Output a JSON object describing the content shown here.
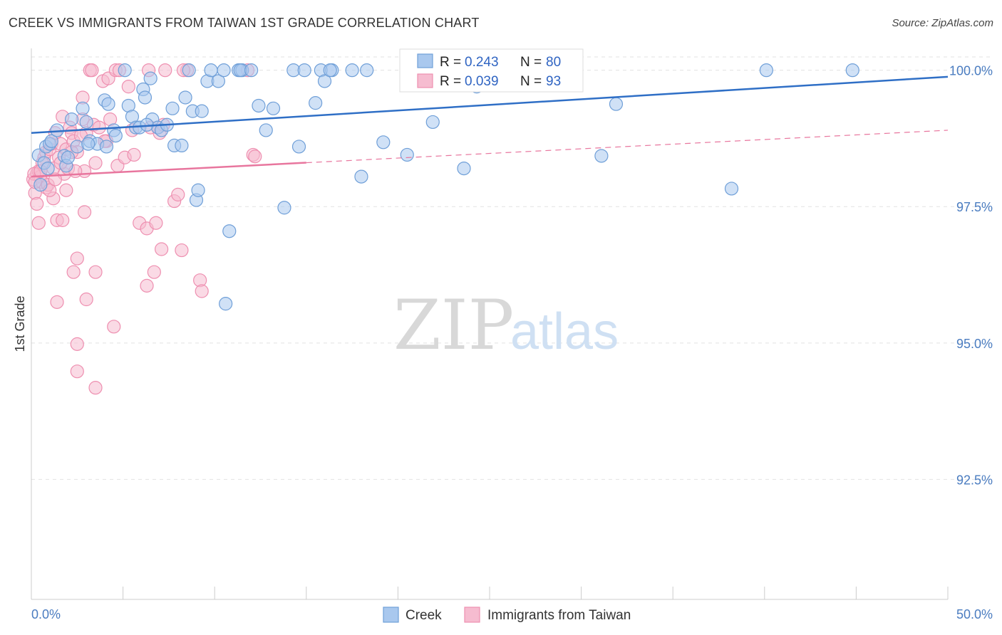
{
  "title": "CREEK VS IMMIGRANTS FROM TAIWAN 1ST GRADE CORRELATION CHART",
  "source": "Source: ZipAtlas.com",
  "watermark": {
    "zip": "ZIP",
    "atlas": "atlas"
  },
  "legend": {
    "r_label": "R =",
    "n_label": "N =",
    "rows": [
      {
        "series": "Creek",
        "r": "0.243",
        "n": "80"
      },
      {
        "series": "Immigrants from Taiwan",
        "r": "0.039",
        "n": "93"
      }
    ]
  },
  "colors": {
    "creek_fill": "#a9c8ee",
    "creek_stroke": "#6f9fd8",
    "creek_line": "#2f6fc6",
    "taiwan_fill": "#f6bcd0",
    "taiwan_stroke": "#ee8fb0",
    "taiwan_line": "#e8769e",
    "tick_label": "#4a7cc0"
  },
  "chart_data": {
    "type": "scatter",
    "title": "CREEK VS IMMIGRANTS FROM TAIWAN 1ST GRADE CORRELATION CHART",
    "xlabel": "",
    "ylabel": "1st Grade",
    "xlim": [
      0,
      50
    ],
    "ylim": [
      90.3,
      100.4
    ],
    "x_tick_labels": [
      "0.0%",
      "50.0%"
    ],
    "y_ticks": [
      92.5,
      95.0,
      97.5,
      100.0
    ],
    "y_tick_labels": [
      "92.5%",
      "95.0%",
      "97.5%",
      "100.0%"
    ],
    "legend_position": "bottom",
    "series": [
      {
        "name": "Creek",
        "trend": {
          "x": [
            0,
            50
          ],
          "y": [
            98.85,
            99.88
          ],
          "dashed_from": null
        },
        "points": [
          [
            0.4,
            98.44
          ],
          [
            0.5,
            97.9
          ],
          [
            0.7,
            98.3
          ],
          [
            0.8,
            98.6
          ],
          [
            1.0,
            98.65
          ],
          [
            1.1,
            98.7
          ],
          [
            1.4,
            98.9
          ],
          [
            1.8,
            98.43
          ],
          [
            1.9,
            98.25
          ],
          [
            2.2,
            99.1
          ],
          [
            2.5,
            98.6
          ],
          [
            2.8,
            99.3
          ],
          [
            3.0,
            99.05
          ],
          [
            3.2,
            98.7
          ],
          [
            3.6,
            98.65
          ],
          [
            4.0,
            99.45
          ],
          [
            4.2,
            99.38
          ],
          [
            4.5,
            98.9
          ],
          [
            4.6,
            98.8
          ],
          [
            5.1,
            100.0
          ],
          [
            5.3,
            99.35
          ],
          [
            5.5,
            99.15
          ],
          [
            5.7,
            98.95
          ],
          [
            6.1,
            99.65
          ],
          [
            6.2,
            99.5
          ],
          [
            6.5,
            99.85
          ],
          [
            6.6,
            99.1
          ],
          [
            6.9,
            98.95
          ],
          [
            7.1,
            98.9
          ],
          [
            7.4,
            99.0
          ],
          [
            7.7,
            99.3
          ],
          [
            7.8,
            98.62
          ],
          [
            8.2,
            98.62
          ],
          [
            8.4,
            99.5
          ],
          [
            8.6,
            100.0
          ],
          [
            8.8,
            99.25
          ],
          [
            9.0,
            97.62
          ],
          [
            9.1,
            97.8
          ],
          [
            9.6,
            99.8
          ],
          [
            9.8,
            100.0
          ],
          [
            10.2,
            99.8
          ],
          [
            10.5,
            100.0
          ],
          [
            10.8,
            97.05
          ],
          [
            10.6,
            95.72
          ],
          [
            11.3,
            100.0
          ],
          [
            11.5,
            100.0
          ],
          [
            12.4,
            99.35
          ],
          [
            12.8,
            98.9
          ],
          [
            13.2,
            99.3
          ],
          [
            13.8,
            97.48
          ],
          [
            14.3,
            100.0
          ],
          [
            14.6,
            98.6
          ],
          [
            14.9,
            100.0
          ],
          [
            15.5,
            99.4
          ],
          [
            15.8,
            100.0
          ],
          [
            16.0,
            99.8
          ],
          [
            16.4,
            100.0
          ],
          [
            17.5,
            100.0
          ],
          [
            18.0,
            98.05
          ],
          [
            18.3,
            100.0
          ],
          [
            19.2,
            98.68
          ],
          [
            20.5,
            98.45
          ],
          [
            21.9,
            99.05
          ],
          [
            23.6,
            98.2
          ],
          [
            24.3,
            99.7
          ],
          [
            31.1,
            98.43
          ],
          [
            31.9,
            99.38
          ],
          [
            38.2,
            97.83
          ],
          [
            40.1,
            100.0
          ],
          [
            44.8,
            100.0
          ],
          [
            2.0,
            98.4
          ],
          [
            3.1,
            98.65
          ],
          [
            4.1,
            98.6
          ],
          [
            5.9,
            98.95
          ],
          [
            6.3,
            99.0
          ],
          [
            9.3,
            99.25
          ],
          [
            11.4,
            100.0
          ],
          [
            12.0,
            100.0
          ],
          [
            16.3,
            100.0
          ],
          [
            0.9,
            98.2
          ]
        ]
      },
      {
        "name": "Immigrants from Taiwan",
        "trend": {
          "x": [
            0,
            50
          ],
          "y": [
            98.05,
            98.9
          ],
          "dashed_from": 15
        },
        "points": [
          [
            0.1,
            98.0
          ],
          [
            0.2,
            97.75
          ],
          [
            0.3,
            98.1
          ],
          [
            0.3,
            97.55
          ],
          [
            0.4,
            98.15
          ],
          [
            0.4,
            97.2
          ],
          [
            0.5,
            98.05
          ],
          [
            0.6,
            97.95
          ],
          [
            0.7,
            98.4
          ],
          [
            0.8,
            97.85
          ],
          [
            0.8,
            98.5
          ],
          [
            0.9,
            97.9
          ],
          [
            1.0,
            98.55
          ],
          [
            1.1,
            98.65
          ],
          [
            1.2,
            98.2
          ],
          [
            1.2,
            97.65
          ],
          [
            1.3,
            98.85
          ],
          [
            1.4,
            97.25
          ],
          [
            1.4,
            95.75
          ],
          [
            1.5,
            98.4
          ],
          [
            1.6,
            98.65
          ],
          [
            1.7,
            97.25
          ],
          [
            1.7,
            99.15
          ],
          [
            1.8,
            98.1
          ],
          [
            1.9,
            98.55
          ],
          [
            1.9,
            97.8
          ],
          [
            2.0,
            98.2
          ],
          [
            2.1,
            98.95
          ],
          [
            2.2,
            98.85
          ],
          [
            2.3,
            98.7
          ],
          [
            2.3,
            96.3
          ],
          [
            2.5,
            98.5
          ],
          [
            2.5,
            96.55
          ],
          [
            2.5,
            94.98
          ],
          [
            2.5,
            94.48
          ],
          [
            2.8,
            99.1
          ],
          [
            2.8,
            99.5
          ],
          [
            2.9,
            98.15
          ],
          [
            2.9,
            97.4
          ],
          [
            3.0,
            98.85
          ],
          [
            3.0,
            95.8
          ],
          [
            3.2,
            100.0
          ],
          [
            3.3,
            100.0
          ],
          [
            3.4,
            99.0
          ],
          [
            3.5,
            98.3
          ],
          [
            3.5,
            96.3
          ],
          [
            3.5,
            94.18
          ],
          [
            3.9,
            99.8
          ],
          [
            4.1,
            98.7
          ],
          [
            4.2,
            99.85
          ],
          [
            4.3,
            99.1
          ],
          [
            4.5,
            95.3
          ],
          [
            4.6,
            100.0
          ],
          [
            4.7,
            98.25
          ],
          [
            4.8,
            100.0
          ],
          [
            5.1,
            98.4
          ],
          [
            5.3,
            99.7
          ],
          [
            5.5,
            98.9
          ],
          [
            5.6,
            98.45
          ],
          [
            5.9,
            97.2
          ],
          [
            6.3,
            97.1
          ],
          [
            6.3,
            96.05
          ],
          [
            6.4,
            100.0
          ],
          [
            6.5,
            98.95
          ],
          [
            6.7,
            96.3
          ],
          [
            6.8,
            97.2
          ],
          [
            7.0,
            98.85
          ],
          [
            7.1,
            96.72
          ],
          [
            7.3,
            100.0
          ],
          [
            7.8,
            97.6
          ],
          [
            8.0,
            97.72
          ],
          [
            8.2,
            96.7
          ],
          [
            8.5,
            100.0
          ],
          [
            9.2,
            96.15
          ],
          [
            9.3,
            95.95
          ],
          [
            11.8,
            100.0
          ],
          [
            12.1,
            98.45
          ],
          [
            12.2,
            98.42
          ],
          [
            0.15,
            98.1
          ],
          [
            0.2,
            97.95
          ],
          [
            0.6,
            98.3
          ],
          [
            1.0,
            97.8
          ],
          [
            1.6,
            98.3
          ],
          [
            2.2,
            98.5
          ],
          [
            2.7,
            98.8
          ],
          [
            3.7,
            98.95
          ],
          [
            6.9,
            98.95
          ],
          [
            7.2,
            99.0
          ],
          [
            0.5,
            98.15
          ],
          [
            1.3,
            98.0
          ],
          [
            2.4,
            98.15
          ],
          [
            4.0,
            98.7
          ],
          [
            8.3,
            100.0
          ]
        ]
      }
    ]
  },
  "bottom_legend": [
    {
      "name": "Creek"
    },
    {
      "name": "Immigrants from Taiwan"
    }
  ]
}
